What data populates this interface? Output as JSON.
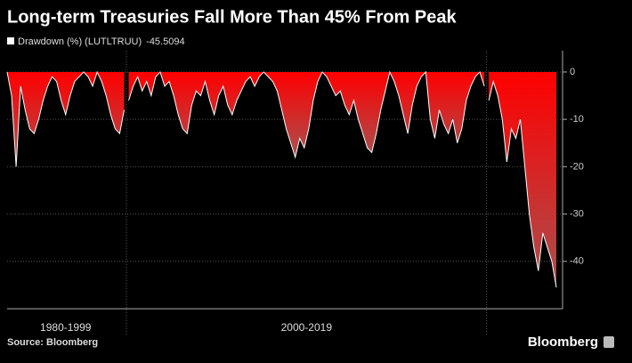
{
  "chart_data": {
    "type": "area",
    "title": "Long-term Treasuries Fall More Than 45% From Peak",
    "series_name": "Drawdown (%) (LUTLTRUU)",
    "color": "#ff0000",
    "color_bottom": "#a85050",
    "edge_color": "#ffffff",
    "groups": [
      {
        "label": "1980-1999",
        "values": [
          0,
          -5,
          -20,
          -3,
          -8,
          -12,
          -13,
          -10,
          -6,
          -3,
          -1,
          -2,
          -6,
          -9,
          -5,
          -2,
          -1,
          0,
          -1,
          -3,
          0,
          -2,
          -5,
          -9,
          -12,
          -13,
          -8
        ]
      },
      {
        "label": "2000-2019",
        "values": [
          -6,
          -3,
          -1,
          -4,
          -2,
          -5,
          -1,
          0,
          -3,
          -2,
          -5,
          -9,
          -12,
          -13,
          -7,
          -4,
          -5,
          -2,
          -6,
          -9,
          -5,
          -3,
          -7,
          -9,
          -6,
          -4,
          -2,
          -1,
          -3,
          -1,
          0,
          -1,
          -2,
          -4,
          -8,
          -12,
          -15,
          -18,
          -14,
          -16,
          -12,
          -6,
          -2,
          0,
          -1,
          -3,
          -5,
          -4,
          -7,
          -9,
          -6,
          -10,
          -13,
          -16,
          -17,
          -13,
          -8,
          -4,
          0,
          -2,
          -5,
          -9,
          -13,
          -7,
          -3,
          -1,
          0,
          -10,
          -14,
          -8,
          -11,
          -13,
          -10,
          -15,
          -12,
          -6,
          -3,
          -1,
          0,
          -3
        ]
      },
      {
        "label": null,
        "values": [
          -6,
          -2,
          -5,
          -10,
          -19,
          -12,
          -14,
          -10,
          -20,
          -30,
          -37,
          -42,
          -34,
          -37,
          -40,
          -45.5094
        ]
      }
    ],
    "ylim": [
      -50,
      4.5
    ],
    "yticks": [
      0,
      -10,
      -20,
      -30,
      -40
    ],
    "grid": true,
    "source": "Source: Bloomberg",
    "brand": "Bloomberg"
  }
}
